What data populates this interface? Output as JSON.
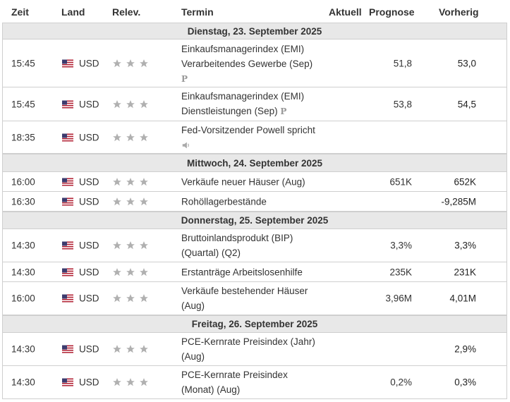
{
  "columns": {
    "zeit": "Zeit",
    "land": "Land",
    "relev": "Relev.",
    "termin": "Termin",
    "aktuell": "Aktuell",
    "prognose": "Prognose",
    "vorherig": "Vorherig"
  },
  "days": [
    {
      "label": "Dienstag, 23. September 2025"
    },
    {
      "label": "Mittwoch, 24. September 2025"
    },
    {
      "label": "Donnerstag, 25. September 2025"
    },
    {
      "label": "Freitag, 26. September 2025"
    }
  ],
  "events": [
    {
      "time": "15:45",
      "country": "USD",
      "title_line1": "Einkaufsmanagerindex (EMI)",
      "title_line2": "Verarbeitendes Gewerbe (Sep)",
      "preliminary": "P",
      "prognose": "51,8",
      "vorherig": "53,0",
      "stars": 3
    },
    {
      "time": "15:45",
      "country": "USD",
      "title_line1": "Einkaufsmanagerindex (EMI)",
      "title_line2": "Dienstleistungen (Sep)",
      "preliminary": "P",
      "prognose": "53,8",
      "vorherig": "54,5",
      "stars": 3
    },
    {
      "time": "18:35",
      "country": "USD",
      "title_line1": "Fed-Vorsitzender Powell spricht",
      "title_line2": "",
      "speech_icon": "speaker-icon",
      "prognose": "",
      "vorherig": "",
      "stars": 3
    },
    {
      "time": "16:00",
      "country": "USD",
      "title_line1": "Verkäufe neuer Häuser (Aug)",
      "title_line2": "",
      "prognose": "651K",
      "vorherig": "652K",
      "stars": 3
    },
    {
      "time": "16:30",
      "country": "USD",
      "title_line1": "Rohöllagerbestände",
      "title_line2": "",
      "prognose": "",
      "vorherig": "-9,285M",
      "stars": 3
    },
    {
      "time": "14:30",
      "country": "USD",
      "title_line1": "Bruttoinlandsprodukt (BIP)",
      "title_line2": "(Quartal) (Q2)",
      "prognose": "3,3%",
      "vorherig": "3,3%",
      "stars": 3
    },
    {
      "time": "14:30",
      "country": "USD",
      "title_line1": "Erstanträge Arbeitslosenhilfe",
      "title_line2": "",
      "prognose": "235K",
      "vorherig": "231K",
      "stars": 3
    },
    {
      "time": "16:00",
      "country": "USD",
      "title_line1": "Verkäufe bestehender Häuser",
      "title_line2": "(Aug)",
      "prognose": "3,96M",
      "vorherig": "4,01M",
      "stars": 3
    },
    {
      "time": "14:30",
      "country": "USD",
      "title_line1": "PCE-Kernrate Preisindex (Jahr)",
      "title_line2": "(Aug)",
      "prognose": "",
      "vorherig": "2,9%",
      "stars": 3
    },
    {
      "time": "14:30",
      "country": "USD",
      "title_line1": "PCE-Kernrate Preisindex",
      "title_line2": "(Monat) (Aug)",
      "prognose": "0,2%",
      "vorherig": "0,3%",
      "stars": 3
    }
  ],
  "colors": {
    "star": "#b0b0b0",
    "day_bg": "#e8e8e8",
    "border": "#cfcfcf",
    "flag_red": "#b22234",
    "flag_blue": "#3c3b6e"
  }
}
